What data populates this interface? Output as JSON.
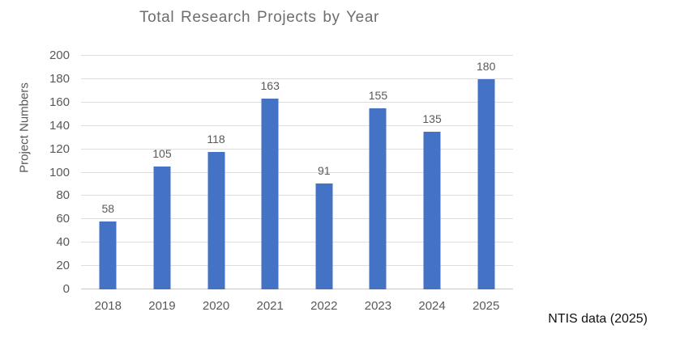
{
  "chart_data": {
    "type": "bar",
    "title": "Total Research Projects by Year",
    "categories": [
      "2018",
      "2019",
      "2020",
      "2021",
      "2022",
      "2023",
      "2024",
      "2025"
    ],
    "values": [
      58,
      105,
      118,
      163,
      91,
      155,
      135,
      180
    ],
    "xlabel": "",
    "ylabel": "Project Numbers",
    "ylim": [
      0,
      200
    ],
    "ytick_step": 20,
    "grid": true,
    "data_labels": true,
    "legend": "none",
    "annotation": "NTIS data (2025)",
    "colors": {
      "bar": "#4472C4",
      "gridline": "#DEDEDE",
      "axis_line": "#C9C9C9",
      "axis_text": "#595959",
      "title_text": "#6E6E6E",
      "annotation_text": "#111111"
    }
  }
}
